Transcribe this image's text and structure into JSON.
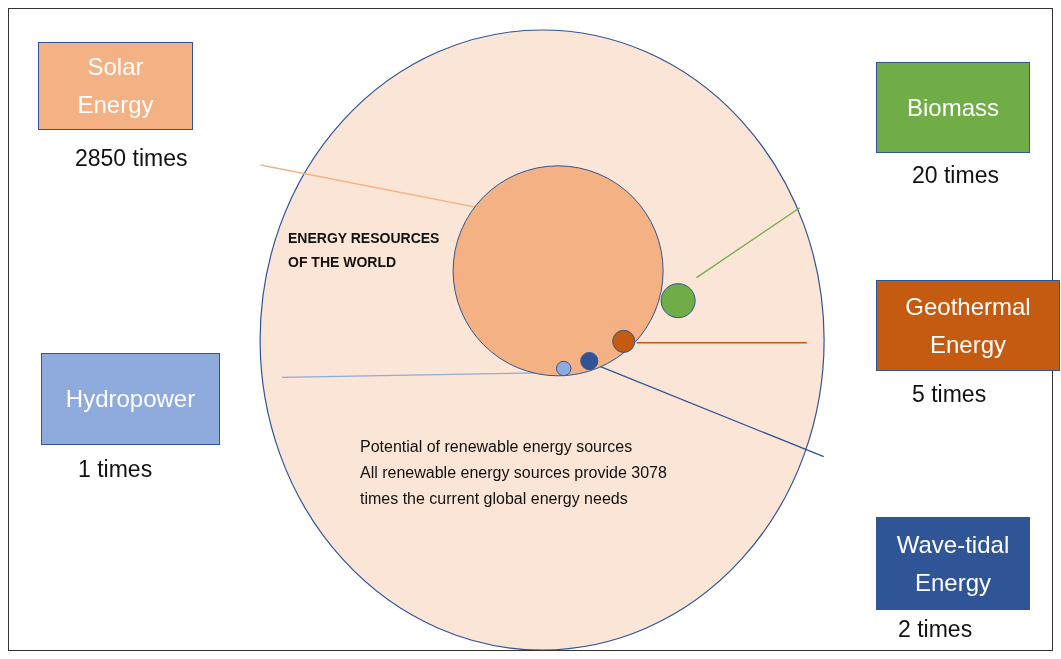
{
  "chart_data": {
    "type": "other",
    "title": "ENERGY RESOURCES OF THE WORLD",
    "categories": [
      "Solar Energy",
      "Biomass",
      "Geothermal Energy",
      "Hydropower",
      "Wave-tidal Energy"
    ],
    "values": [
      2850,
      20,
      5,
      1,
      2
    ],
    "value_labels": [
      "2850 times",
      "20 times",
      "5 times",
      "1 times",
      "2 times"
    ],
    "colors": [
      "#f4b183",
      "#70ad47",
      "#c55a11",
      "#8faadc",
      "#2f5597"
    ],
    "annotations": [
      "Potential of renewable energy sources",
      "All renewable energy sources provide 3078 times the current global energy needs"
    ]
  }
}
